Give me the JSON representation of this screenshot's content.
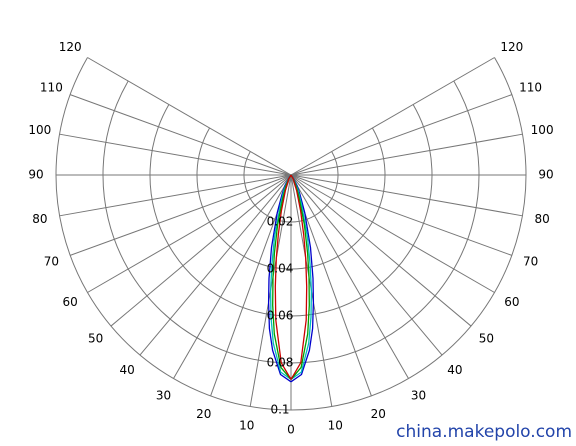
{
  "chart_data": {
    "type": "polar",
    "rlim": [
      0,
      0.1
    ],
    "rticks": [
      0.02,
      0.04,
      0.06,
      0.08,
      0.1
    ],
    "angle_ticks": [
      0,
      10,
      20,
      30,
      40,
      50,
      60,
      70,
      80,
      90,
      100,
      110,
      120
    ],
    "x": [
      0,
      3,
      6,
      8,
      10,
      12,
      15,
      20,
      25,
      30,
      40,
      90
    ],
    "series": [
      {
        "color": "#0000cc",
        "values": [
          0.088,
          0.085,
          0.075,
          0.066,
          0.055,
          0.045,
          0.032,
          0.017,
          0.009,
          0.005,
          0.001,
          0
        ]
      },
      {
        "color": "#00bbbb",
        "values": [
          0.087,
          0.084,
          0.072,
          0.061,
          0.05,
          0.039,
          0.027,
          0.013,
          0.007,
          0.003,
          0.001,
          0
        ]
      },
      {
        "color": "#00a000",
        "values": [
          0.087,
          0.082,
          0.068,
          0.056,
          0.044,
          0.034,
          0.022,
          0.01,
          0.005,
          0.002,
          0,
          0
        ]
      },
      {
        "color": "#cc0000",
        "values": [
          0.087,
          0.08,
          0.062,
          0.048,
          0.036,
          0.026,
          0.016,
          0.007,
          0.003,
          0.002,
          0,
          0
        ]
      }
    ],
    "watermark": "china.makepolo.com"
  }
}
